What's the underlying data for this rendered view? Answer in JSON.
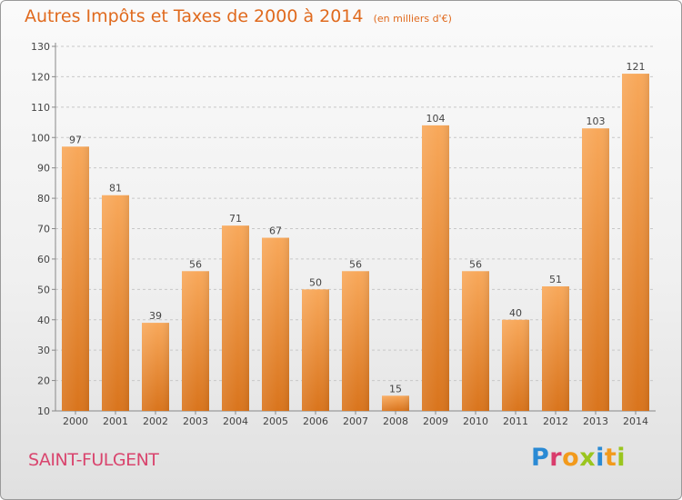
{
  "chart_data": {
    "type": "bar",
    "title": "Autres Impôts et Taxes de 2000 à 2014",
    "subtitle": "(en milliers d'€)",
    "categories": [
      "2000",
      "2001",
      "2002",
      "2003",
      "2004",
      "2005",
      "2006",
      "2007",
      "2008",
      "2009",
      "2010",
      "2011",
      "2012",
      "2013",
      "2014"
    ],
    "values": [
      97,
      81,
      39,
      56,
      71,
      67,
      50,
      56,
      15,
      104,
      56,
      40,
      51,
      103,
      121
    ],
    "ylim": [
      10,
      130
    ],
    "yticks": [
      10,
      20,
      30,
      40,
      50,
      60,
      70,
      80,
      90,
      100,
      110,
      120,
      130
    ],
    "grid": true,
    "bar_color": "#f0892e"
  },
  "footer": {
    "place": "SAINT-FULGENT",
    "logo": [
      "P",
      "r",
      "o",
      "x",
      "i",
      "t",
      "i"
    ]
  },
  "colors": {
    "title": "#e06a1e",
    "place": "#d9456e",
    "logo": [
      "#2a8ad4",
      "#f29a1c",
      "#9ac51e",
      "#d93c6c"
    ]
  }
}
